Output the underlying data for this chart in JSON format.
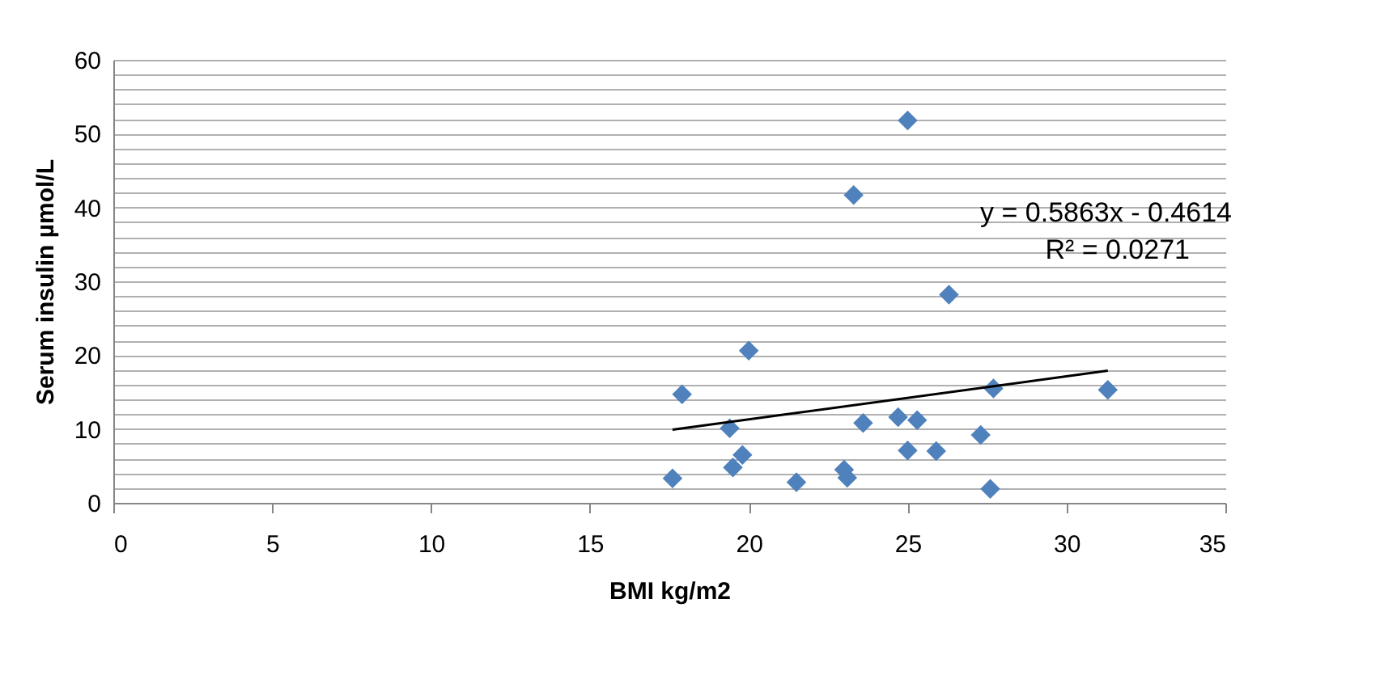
{
  "chart_data": {
    "type": "scatter",
    "xlabel": "BMI kg/m2",
    "ylabel": "Serum insulin µmol/L",
    "xlim": [
      0,
      35
    ],
    "xticks": [
      0,
      5,
      10,
      15,
      20,
      25,
      30,
      35
    ],
    "ylim": [
      0,
      60
    ],
    "yticks": [
      0,
      {
        "value": 2,
        "label": null
      },
      {
        "value": 4,
        "label": null
      },
      {
        "value": 6,
        "label": null
      },
      {
        "value": 8,
        "label": null
      },
      10,
      {
        "value": 12,
        "label": null
      },
      {
        "value": 14,
        "label": null
      },
      {
        "value": 16,
        "label": null
      },
      {
        "value": 18,
        "label": null
      },
      20,
      {
        "value": 22,
        "label": null
      },
      {
        "value": 24,
        "label": null
      },
      {
        "value": 26,
        "label": null
      },
      {
        "value": 28,
        "label": null
      },
      30,
      {
        "value": 32,
        "label": null
      },
      {
        "value": 34,
        "label": null
      },
      {
        "value": 36,
        "label": null
      },
      {
        "value": 38,
        "label": null
      },
      40,
      {
        "value": 42,
        "label": null
      },
      {
        "value": 44,
        "label": null
      },
      {
        "value": 46,
        "label": null
      },
      {
        "value": 48,
        "label": null
      },
      50,
      {
        "value": 52,
        "label": null
      },
      {
        "value": 54,
        "label": null
      },
      {
        "value": 56,
        "label": null
      },
      {
        "value": 58,
        "label": null
      },
      60
    ],
    "grid": "y",
    "marker": "diamond",
    "series": [
      {
        "color": "#4f81bd",
        "x": [
          17.6,
          17.9,
          19.4,
          19.5,
          19.8,
          20.0,
          21.5,
          23.0,
          23.1,
          23.3,
          23.6,
          24.7,
          25.3,
          25.0,
          25.0,
          25.9,
          26.3,
          27.3,
          27.6,
          27.7,
          31.3
        ],
        "values": [
          3.3,
          14.7,
          10.1,
          4.8,
          6.5,
          20.6,
          2.8,
          4.5,
          3.4,
          41.7,
          10.8,
          11.6,
          11.2,
          51.8,
          7.1,
          7.0,
          28.2,
          9.2,
          1.9,
          15.5,
          15.3
        ]
      },
      {
        "type": "line",
        "color": "#000000",
        "marker": "none",
        "x": [
          17.6,
          31.3
        ],
        "values": [
          9.9,
          17.9
        ]
      }
    ],
    "annotations": [
      "y = 0.5863x - 0.4614",
      "R² = 0.0271"
    ]
  }
}
